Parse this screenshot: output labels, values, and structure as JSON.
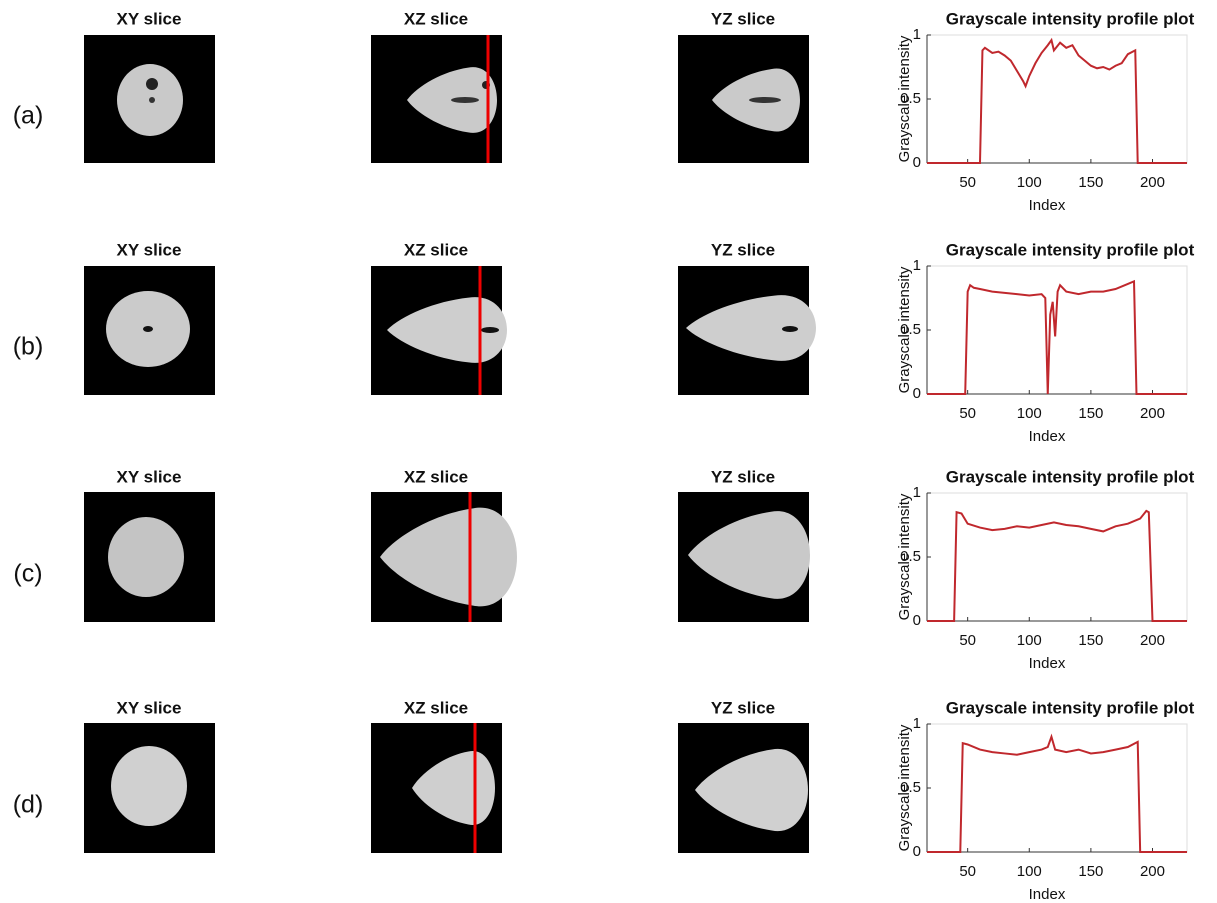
{
  "panels": [
    {
      "label": "(a)",
      "slices": [
        "XY slice",
        "XZ slice",
        "YZ slice"
      ]
    },
    {
      "label": "(b)",
      "slices": [
        "XY slice",
        "XZ slice",
        "YZ slice"
      ]
    },
    {
      "label": "(c)",
      "slices": [
        "XY slice",
        "XZ slice",
        "YZ slice"
      ]
    },
    {
      "label": "(d)",
      "slices": [
        "XY slice",
        "XZ slice",
        "YZ slice"
      ]
    }
  ],
  "chart_data": [
    {
      "type": "line",
      "title": "Grayscale intensity profile plot",
      "xlabel": "Index",
      "ylabel": "Grayscale intensity",
      "color": "#c0282d",
      "x": [
        17,
        20,
        40,
        60,
        62,
        64,
        70,
        75,
        80,
        85,
        90,
        95,
        97,
        100,
        105,
        110,
        115,
        118,
        120,
        125,
        130,
        135,
        140,
        145,
        150,
        155,
        160,
        165,
        170,
        175,
        180,
        184,
        186,
        188,
        200,
        220,
        228
      ],
      "values": [
        0,
        0,
        0,
        0,
        0.88,
        0.9,
        0.86,
        0.87,
        0.84,
        0.8,
        0.72,
        0.64,
        0.6,
        0.68,
        0.78,
        0.86,
        0.92,
        0.96,
        0.88,
        0.94,
        0.9,
        0.92,
        0.84,
        0.8,
        0.76,
        0.74,
        0.75,
        0.73,
        0.76,
        0.78,
        0.85,
        0.87,
        0.88,
        0,
        0,
        0,
        0
      ],
      "xlim": [
        17,
        228
      ],
      "ylim": [
        0,
        1
      ],
      "xticks": [
        50,
        100,
        150,
        200
      ],
      "yticks": [
        0,
        0.5,
        1
      ]
    },
    {
      "type": "line",
      "title": "Grayscale intensity profile plot",
      "xlabel": "Index",
      "ylabel": "Grayscale intensity",
      "color": "#c0282d",
      "x": [
        17,
        30,
        48,
        50,
        52,
        55,
        60,
        70,
        80,
        90,
        100,
        110,
        113,
        115,
        117,
        119,
        121,
        123,
        125,
        130,
        140,
        150,
        160,
        170,
        180,
        185,
        187,
        200,
        228
      ],
      "values": [
        0,
        0,
        0,
        0.8,
        0.85,
        0.83,
        0.82,
        0.8,
        0.79,
        0.78,
        0.77,
        0.78,
        0.75,
        0,
        0.62,
        0.72,
        0.45,
        0.8,
        0.85,
        0.8,
        0.78,
        0.8,
        0.8,
        0.82,
        0.86,
        0.88,
        0,
        0,
        0
      ],
      "xlim": [
        17,
        228
      ],
      "ylim": [
        0,
        1
      ],
      "xticks": [
        50,
        100,
        150,
        200
      ],
      "yticks": [
        0,
        0.5,
        1
      ]
    },
    {
      "type": "line",
      "title": "Grayscale intensity profile plot",
      "xlabel": "Index",
      "ylabel": "Grayscale intensity",
      "color": "#c0282d",
      "x": [
        17,
        30,
        39,
        41,
        45,
        50,
        60,
        70,
        80,
        90,
        100,
        110,
        120,
        130,
        140,
        150,
        160,
        170,
        180,
        190,
        195,
        197,
        200,
        228
      ],
      "values": [
        0,
        0,
        0,
        0.85,
        0.84,
        0.76,
        0.73,
        0.71,
        0.72,
        0.74,
        0.73,
        0.75,
        0.77,
        0.75,
        0.74,
        0.72,
        0.7,
        0.74,
        0.76,
        0.8,
        0.86,
        0.85,
        0,
        0
      ],
      "xlim": [
        17,
        228
      ],
      "ylim": [
        0,
        1
      ],
      "xticks": [
        50,
        100,
        150,
        200
      ],
      "yticks": [
        0,
        0.5,
        1
      ]
    },
    {
      "type": "line",
      "title": "Grayscale intensity profile plot",
      "xlabel": "Index",
      "ylabel": "Grayscale intensity",
      "color": "#c0282d",
      "x": [
        17,
        30,
        44,
        46,
        50,
        60,
        70,
        80,
        90,
        100,
        110,
        115,
        118,
        121,
        130,
        140,
        150,
        160,
        170,
        180,
        188,
        190,
        200,
        228
      ],
      "values": [
        0,
        0,
        0,
        0.85,
        0.84,
        0.8,
        0.78,
        0.77,
        0.76,
        0.78,
        0.8,
        0.82,
        0.9,
        0.8,
        0.78,
        0.8,
        0.77,
        0.78,
        0.8,
        0.82,
        0.86,
        0,
        0,
        0
      ],
      "xlim": [
        17,
        228
      ],
      "ylim": [
        0,
        1
      ],
      "xticks": [
        50,
        100,
        150,
        200
      ],
      "yticks": [
        0,
        0.5,
        1
      ]
    }
  ]
}
